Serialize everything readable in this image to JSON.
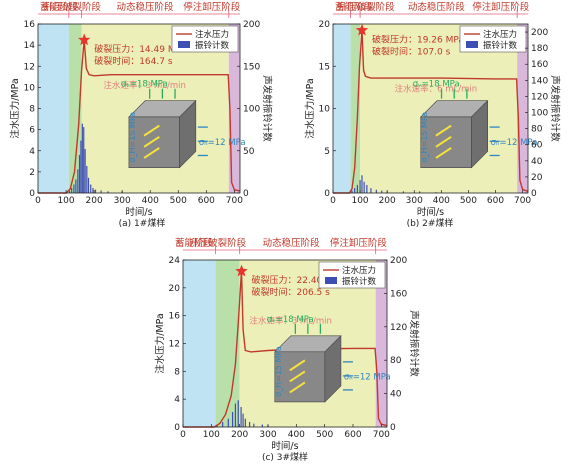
{
  "figure": {
    "stage_labels": [
      "蓄能阶段",
      "升压破裂阶段",
      "动态稳压阶段",
      "停注卸压阶段"
    ],
    "left_axis_label": "注水压力/MPa",
    "right_axis_label": "声发射振铃计数",
    "x_axis_label": "时间/s",
    "legend": {
      "pressure": "注水压力",
      "counts": "振铃计数"
    },
    "stage_colors": {
      "storage": "#bfe3f2",
      "boost": "#b8e0a8",
      "stable": "#ecefb8",
      "unload": "#d9b8dc"
    },
    "line_color": "#c0392b",
    "bar_color": "#3d4fb5",
    "star_color": "#e8352b",
    "sigma_v_label": "σᵥ=18 MPa",
    "sigma_h_label": "σₕ=12 MPa",
    "sigma_H_label": "σ_H=15 MPa"
  },
  "chart_data": [
    {
      "type": "line",
      "subplot_label": "(a) 1#煤样",
      "break_pressure_text": "破裂压力：14.49 MPa",
      "break_time_text": "破裂时间：164.7 s",
      "flow_text": "注水速率：3 mL/min",
      "break_pressure": 14.49,
      "break_time": 164.7,
      "xlim": [
        0,
        720
      ],
      "xticks": [
        0,
        100,
        200,
        300,
        400,
        500,
        600,
        700
      ],
      "ylim": [
        0,
        16
      ],
      "yticks": [
        0,
        2,
        4,
        6,
        8,
        10,
        12,
        14,
        16
      ],
      "y2lim": [
        0,
        200
      ],
      "y2ticks": [
        0,
        50,
        100,
        150,
        200
      ],
      "stages": [
        [
          0,
          110
        ],
        [
          110,
          155
        ],
        [
          155,
          680
        ],
        [
          680,
          720
        ]
      ],
      "pressure": {
        "x": [
          0,
          100,
          115,
          130,
          145,
          155,
          164.7,
          172,
          182,
          200,
          260,
          400,
          600,
          678,
          684,
          690,
          700,
          720
        ],
        "y": [
          0,
          0,
          0.4,
          2.0,
          6.5,
          11.5,
          14.49,
          11.8,
          11.2,
          11.1,
          11.2,
          11.2,
          11.2,
          11.2,
          8.0,
          1.0,
          0.3,
          0.2
        ]
      },
      "counts": {
        "x": [
          112,
          120,
          128,
          135,
          142,
          148,
          153,
          158,
          163,
          168,
          174,
          180,
          188,
          196,
          205,
          225,
          250,
          300
        ],
        "y": [
          3,
          6,
          10,
          16,
          28,
          45,
          62,
          82,
          78,
          52,
          32,
          18,
          10,
          6,
          4,
          3,
          2,
          2
        ]
      }
    },
    {
      "type": "line",
      "subplot_label": "(b) 2#煤样",
      "break_pressure_text": "破裂压力：19.26 MPa",
      "break_time_text": "破裂时间：107.0 s",
      "flow_text": "注水速率：6 mL/min",
      "break_pressure": 19.26,
      "break_time": 107.0,
      "xlim": [
        0,
        720
      ],
      "xticks": [
        0,
        100,
        200,
        300,
        400,
        500,
        600,
        700
      ],
      "ylim": [
        0,
        20
      ],
      "yticks": [
        0,
        5,
        10,
        15,
        20
      ],
      "y2lim": [
        0,
        210
      ],
      "y2ticks": [
        0,
        20,
        40,
        60,
        80,
        100,
        120,
        140,
        160,
        180,
        200
      ],
      "stages": [
        [
          0,
          65
        ],
        [
          65,
          100
        ],
        [
          100,
          680
        ],
        [
          680,
          720
        ]
      ],
      "pressure": {
        "x": [
          0,
          60,
          70,
          80,
          90,
          98,
          107,
          113,
          120,
          140,
          200,
          400,
          600,
          678,
          684,
          690,
          700,
          720
        ],
        "y": [
          0,
          0,
          0.5,
          3.0,
          9.0,
          15.0,
          19.26,
          14.5,
          13.8,
          13.6,
          13.6,
          13.6,
          13.5,
          13.5,
          9.0,
          1.5,
          0.4,
          0.2
        ]
      },
      "counts": {
        "x": [
          70,
          80,
          90,
          100,
          107,
          115,
          125,
          140,
          160,
          180,
          200,
          260,
          320,
          380
        ],
        "y": [
          3,
          6,
          10,
          16,
          22,
          14,
          10,
          6,
          4,
          3,
          2,
          2,
          2,
          1
        ]
      }
    },
    {
      "type": "line",
      "subplot_label": "(c) 3#煤样",
      "break_pressure_text": "破裂压力：22.40 MPa",
      "break_time_text": "破裂时间：206.5 s",
      "flow_text": "注水速率：3 mL/min",
      "break_pressure": 22.4,
      "break_time": 206.5,
      "xlim": [
        0,
        720
      ],
      "xticks": [
        0,
        100,
        200,
        300,
        400,
        500,
        600,
        700
      ],
      "ylim": [
        0,
        24
      ],
      "yticks": [
        0,
        4,
        8,
        12,
        16,
        20,
        24
      ],
      "y2lim": [
        0,
        200
      ],
      "y2ticks": [
        0,
        40,
        80,
        120,
        160,
        200
      ],
      "stages": [
        [
          0,
          115
        ],
        [
          115,
          200
        ],
        [
          200,
          680
        ],
        [
          680,
          720
        ]
      ],
      "pressure": {
        "x": [
          0,
          110,
          130,
          150,
          170,
          185,
          195,
          206.5,
          212,
          220,
          240,
          300,
          400,
          600,
          678,
          684,
          690,
          700,
          720
        ],
        "y": [
          0,
          0,
          0.5,
          1.8,
          4.5,
          9.0,
          15.0,
          22.4,
          14.0,
          11.0,
          10.8,
          11.0,
          11.2,
          11.3,
          11.3,
          8.0,
          1.2,
          0.4,
          0.2
        ]
      },
      "counts": {
        "x": [
          120,
          140,
          160,
          175,
          185,
          195,
          205,
          212,
          220,
          235,
          250,
          280,
          300
        ],
        "y": [
          3,
          6,
          10,
          18,
          28,
          32,
          24,
          16,
          10,
          6,
          4,
          3,
          2
        ]
      }
    }
  ]
}
